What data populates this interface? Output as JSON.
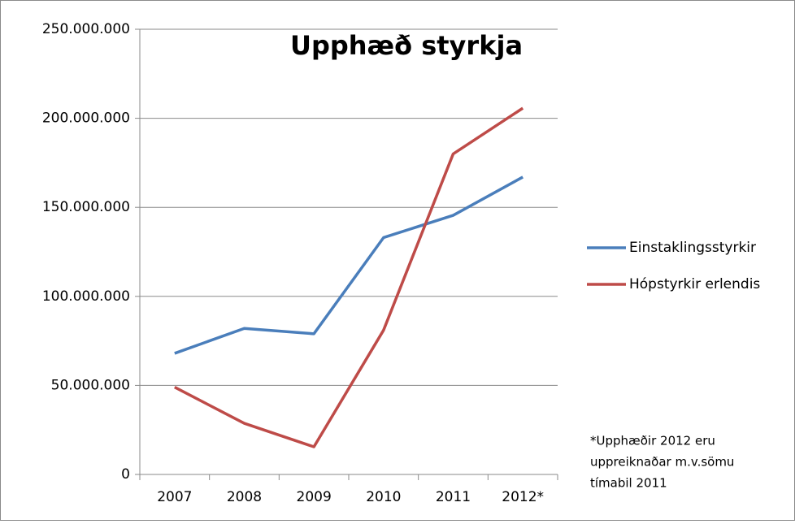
{
  "chart_data": {
    "type": "line",
    "title": "Upphæð styrkja",
    "categories": [
      "2007",
      "2008",
      "2009",
      "2010",
      "2011",
      "2012*"
    ],
    "series": [
      {
        "name": "Einstaklingsstyrkir",
        "color": "#4a7ebb",
        "values": [
          68000000,
          82000000,
          79000000,
          133000000,
          145500000,
          167000000
        ]
      },
      {
        "name": "Hópstyrkir erlendis",
        "color": "#be4b48",
        "values": [
          49000000,
          28700000,
          15500000,
          81000000,
          180000000,
          205700000
        ]
      }
    ],
    "ylim": [
      0,
      250000000
    ],
    "yticks": [
      0,
      {
        "value": 50000000,
        "label": "50.000.000"
      },
      {
        "value": 100000000,
        "label": "100.000.000"
      },
      {
        "value": 150000000,
        "label": "150.000.000"
      },
      {
        "value": 200000000,
        "label": "200.000.000"
      },
      {
        "value": 250000000,
        "label": "250.000.000"
      }
    ],
    "grid": true,
    "legend": "right",
    "annotation": [
      "*Upphæðir  2012 eru",
      "uppreiknaðar m.v.sömu",
      "tímabil 2011"
    ]
  }
}
